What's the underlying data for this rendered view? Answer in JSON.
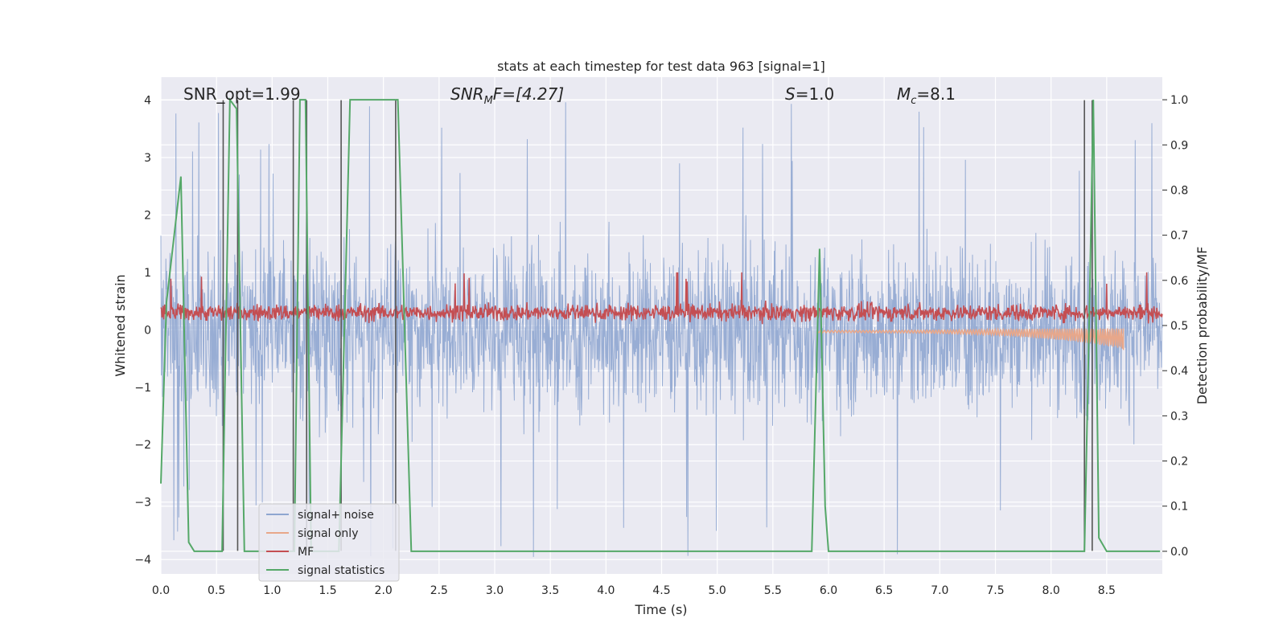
{
  "chart_data": {
    "type": "line",
    "title": "stats at each timestep for test data 963 [signal=1]",
    "xlabel": "Time (s)",
    "ylabel": "Whitened strain",
    "ylabel_right": "Detection probability/MF",
    "xlim": [
      0.0,
      9.0
    ],
    "ylim": [
      -4.25,
      4.4
    ],
    "ylim_right": [
      -0.05,
      1.05
    ],
    "x_ticks": [
      "0.0",
      "0.5",
      "1.0",
      "1.5",
      "2.0",
      "2.5",
      "3.0",
      "3.5",
      "4.0",
      "4.5",
      "5.0",
      "5.5",
      "6.0",
      "6.5",
      "7.0",
      "7.5",
      "8.0",
      "8.5"
    ],
    "y_ticks": [
      "4",
      "3",
      "2",
      "1",
      "0",
      "−1",
      "−2",
      "−3",
      "−4"
    ],
    "y_ticks_right": [
      "1.0",
      "0.9",
      "0.8",
      "0.7",
      "0.6",
      "0.5",
      "0.4",
      "0.3",
      "0.2",
      "0.1",
      "0.0"
    ],
    "annotations": {
      "snr_opt": "SNR_opt=1.99",
      "snr_mf_main": "SNR",
      "snr_mf_sub": "M",
      "snr_mf_rest": "F=[4.27]",
      "s_main": "S",
      "s_rest": "=1.0",
      "mc_main": "M",
      "mc_sub": "c",
      "mc_rest": "=8.1"
    },
    "legend": {
      "placement": "lower-left",
      "entries": [
        {
          "label": "signal+ noise",
          "color": "#8fa6d0"
        },
        {
          "label": "signal only",
          "color": "#e8a78a"
        },
        {
          "label": "MF",
          "color": "#c44e52"
        },
        {
          "label": "signal statistics",
          "color": "#55a868"
        }
      ]
    },
    "grid": true,
    "series": [
      {
        "name": "signal+ noise",
        "color": "#8fa6d0",
        "axis": "left",
        "kind": "noise",
        "x_range": [
          0.0,
          9.0
        ],
        "typical_abs_max": 2.0,
        "extreme_abs_max": 4.0
      },
      {
        "name": "signal only",
        "color": "#e8a78a",
        "axis": "left",
        "kind": "chirp",
        "x_range": [
          5.9,
          8.65
        ],
        "values_end": -0.35
      },
      {
        "name": "MF",
        "color": "#c44e52",
        "axis": "left",
        "kind": "noise",
        "x_range": [
          0.0,
          9.0
        ],
        "center": 0.3,
        "spread": 0.25
      },
      {
        "name": "signal statistics",
        "color": "#55a868",
        "axis": "right",
        "x": [
          0.0,
          0.05,
          0.18,
          0.25,
          0.3,
          0.55,
          0.62,
          0.68,
          0.75,
          1.2,
          1.25,
          1.3,
          1.35,
          1.6,
          1.7,
          1.75,
          2.13,
          2.25,
          5.85,
          5.92,
          5.97,
          6.0,
          8.3,
          8.35,
          8.38,
          8.43,
          8.5,
          8.98
        ],
        "y": [
          0.15,
          0.55,
          0.83,
          0.02,
          0.0,
          0.0,
          1.0,
          0.98,
          0.0,
          0.0,
          1.0,
          1.0,
          0.0,
          0.0,
          1.0,
          1.0,
          1.0,
          0.0,
          0.0,
          0.67,
          0.1,
          0.0,
          0.0,
          0.6,
          1.0,
          0.03,
          0.0,
          0.0
        ]
      }
    ],
    "vertical_markers": [
      0.56,
      0.69,
      1.19,
      1.31,
      1.62,
      2.11,
      8.3,
      8.37
    ]
  }
}
